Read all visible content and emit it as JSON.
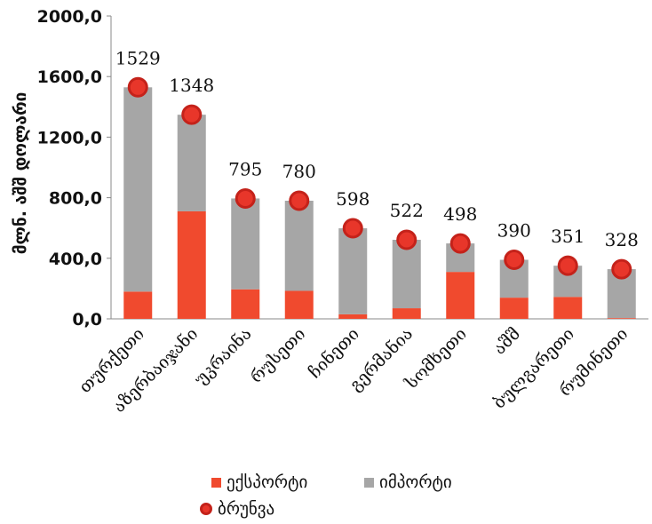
{
  "chart_data": {
    "type": "bar",
    "stacked": true,
    "ylabel": "მლნ. აშშ დოლარი",
    "ylim": [
      0,
      2000
    ],
    "yticks": [
      "0,0",
      "400,0",
      "800,0",
      "1200,0",
      "1600,0",
      "2000,0"
    ],
    "categories": [
      "თურქეთი",
      "აზერბაიჯანი",
      "უკრაინა",
      "რუსეთი",
      "ჩინეთი",
      "გერმანია",
      "სომხეთი",
      "აშშ",
      "ბულგარეთი",
      "რუმინეთი"
    ],
    "series": [
      {
        "name": "ექსპორტი",
        "color": "#f04a2e",
        "values": [
          180,
          710,
          195,
          185,
          30,
          70,
          310,
          140,
          145,
          5
        ]
      },
      {
        "name": "იმპორტი",
        "color": "#a6a6a6",
        "values": [
          1349,
          638,
          600,
          595,
          568,
          452,
          188,
          250,
          206,
          323
        ]
      }
    ],
    "totals": {
      "name": "ბრუნვა",
      "color": "#e8362a",
      "values": [
        1529,
        1348,
        795,
        780,
        598,
        522,
        498,
        390,
        351,
        328
      ]
    },
    "legend_position": "bottom"
  }
}
